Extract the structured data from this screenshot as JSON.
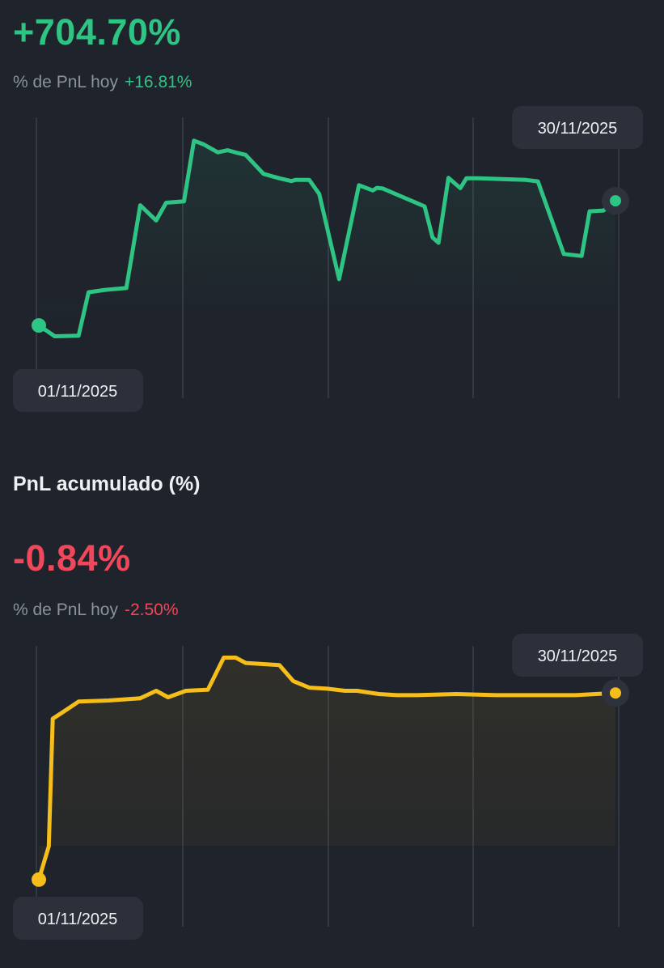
{
  "pnl_diario": {
    "value": "+704.70%",
    "today_label": "% de PnL hoy",
    "today_value": "+16.81%",
    "start_date": "01/11/2025",
    "end_date": "30/11/2025"
  },
  "pnl_acumulado": {
    "title": "PnL acumulado (%)",
    "value": "-0.84%",
    "today_label": "% de PnL hoy",
    "today_value": "-2.50%",
    "start_date": "01/11/2025",
    "end_date": "30/11/2025"
  },
  "colors": {
    "positive": "#2dc484",
    "negative": "#f0475b",
    "line_green": "#2dc484",
    "line_yellow": "#f6be1a",
    "gridline": "#3a3f48",
    "label_muted": "#8b929c",
    "pill_bg": "#2b303a",
    "background": "#1f232b"
  },
  "chart_data": [
    {
      "type": "line",
      "x": [
        1,
        1.8,
        3,
        3.5,
        4.3,
        5.4,
        6.1,
        6.9,
        7.4,
        8.3,
        8.8,
        9.3,
        10,
        10.5,
        10.9,
        11.4,
        12.3,
        13.1,
        13.7,
        13.9,
        14.6,
        15.1,
        16.1,
        17.1,
        17.8,
        18,
        18.3,
        20.4,
        20.8,
        21.1,
        21.6,
        22.2,
        22.5,
        23.1,
        25.5,
        26.1,
        27.4,
        28.3,
        28.7,
        29.4,
        30
      ],
      "y": [
        14.6,
        7.8,
        8.2,
        35.4,
        36.8,
        38.0,
        89.9,
        80.4,
        91.5,
        92.4,
        130.4,
        128.0,
        123.1,
        124.4,
        123.0,
        121.5,
        109.6,
        106.8,
        105.1,
        105.8,
        105.8,
        97.0,
        43.6,
        102.5,
        99.2,
        100.8,
        100.4,
        89.2,
        69.7,
        66.4,
        107.1,
        100.6,
        106.8,
        106.8,
        105.8,
        104.9,
        59.4,
        58.1,
        86.1,
        86.6,
        92.7
      ],
      "ylim": [
        -30,
        145
      ]
    },
    {
      "type": "line",
      "x": [
        1,
        1.5,
        1.7,
        2.2,
        3.0,
        4.5,
        6.1,
        6.9,
        7.5,
        8.4,
        9.5,
        10.3,
        10.9,
        11.4,
        13.1,
        13.8,
        14.6,
        15.5,
        16.4,
        17.0,
        18.1,
        19.0,
        20.0,
        22.0,
        24.0,
        26.0,
        28.0,
        29.0,
        30
      ],
      "y": [
        0.0,
        3.1,
        15.0,
        15.6,
        16.6,
        16.7,
        16.9,
        17.6,
        17.0,
        17.6,
        17.7,
        20.7,
        20.7,
        20.2,
        20.0,
        18.5,
        17.9,
        17.8,
        17.6,
        17.6,
        17.3,
        17.2,
        17.2,
        17.3,
        17.2,
        17.2,
        17.2,
        17.3,
        17.4
      ],
      "ylim": [
        -1,
        23
      ]
    }
  ]
}
